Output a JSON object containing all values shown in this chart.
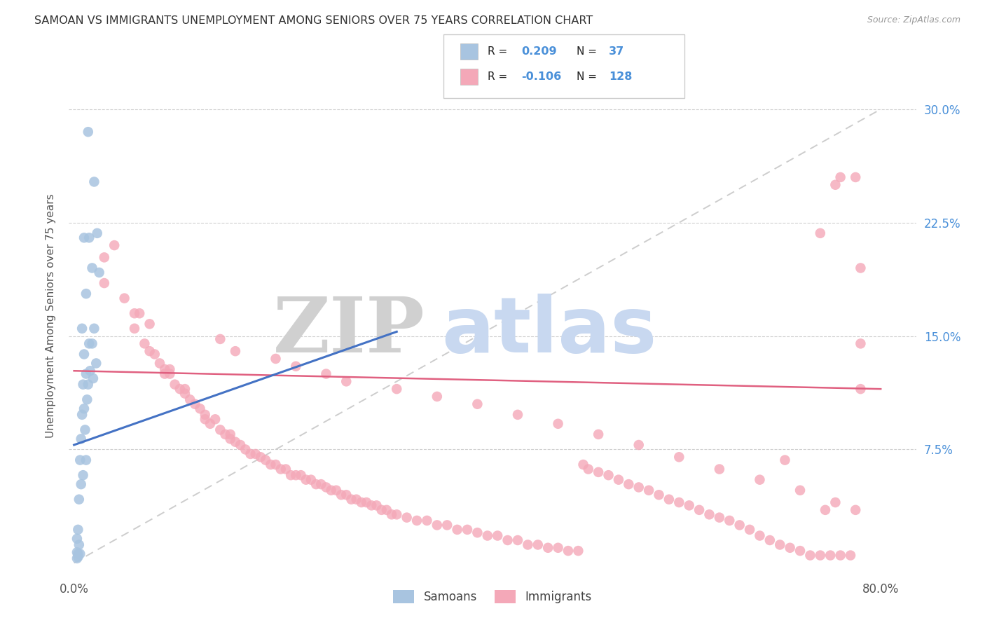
{
  "title": "SAMOAN VS IMMIGRANTS UNEMPLOYMENT AMONG SENIORS OVER 75 YEARS CORRELATION CHART",
  "source": "Source: ZipAtlas.com",
  "ylabel": "Unemployment Among Seniors over 75 years",
  "yticks_labels": [
    "30.0%",
    "22.5%",
    "15.0%",
    "7.5%"
  ],
  "ytick_vals": [
    0.3,
    0.225,
    0.15,
    0.075
  ],
  "xlim": [
    0.0,
    0.8
  ],
  "ylim": [
    0.0,
    0.32
  ],
  "samoan_color": "#a8c4e0",
  "samoan_line_color": "#4472c4",
  "immig_color": "#f4a8b8",
  "immig_line_color": "#e06080",
  "dashed_line_color": "#c8c8c8",
  "background": "#ffffff",
  "samoan_x": [
    0.014,
    0.02,
    0.023,
    0.01,
    0.015,
    0.025,
    0.018,
    0.012,
    0.02,
    0.008,
    0.015,
    0.018,
    0.01,
    0.022,
    0.016,
    0.012,
    0.019,
    0.014,
    0.009,
    0.013,
    0.01,
    0.008,
    0.011,
    0.007,
    0.012,
    0.006,
    0.009,
    0.007,
    0.005,
    0.004,
    0.003,
    0.005,
    0.003,
    0.004,
    0.006,
    0.004,
    0.003
  ],
  "samoan_y": [
    0.285,
    0.252,
    0.218,
    0.215,
    0.215,
    0.192,
    0.195,
    0.178,
    0.155,
    0.155,
    0.145,
    0.145,
    0.138,
    0.132,
    0.127,
    0.125,
    0.122,
    0.118,
    0.118,
    0.108,
    0.102,
    0.098,
    0.088,
    0.082,
    0.068,
    0.068,
    0.058,
    0.052,
    0.042,
    0.022,
    0.016,
    0.012,
    0.007,
    0.006,
    0.006,
    0.004,
    0.003
  ],
  "immig_x": [
    0.03,
    0.05,
    0.06,
    0.06,
    0.065,
    0.07,
    0.075,
    0.08,
    0.085,
    0.09,
    0.09,
    0.095,
    0.1,
    0.105,
    0.11,
    0.11,
    0.115,
    0.12,
    0.125,
    0.13,
    0.13,
    0.135,
    0.14,
    0.145,
    0.15,
    0.155,
    0.155,
    0.16,
    0.165,
    0.17,
    0.175,
    0.18,
    0.185,
    0.19,
    0.195,
    0.2,
    0.205,
    0.21,
    0.215,
    0.22,
    0.225,
    0.23,
    0.235,
    0.24,
    0.245,
    0.25,
    0.255,
    0.26,
    0.265,
    0.27,
    0.275,
    0.28,
    0.285,
    0.29,
    0.295,
    0.3,
    0.305,
    0.31,
    0.315,
    0.32,
    0.33,
    0.34,
    0.35,
    0.36,
    0.37,
    0.38,
    0.39,
    0.4,
    0.41,
    0.42,
    0.43,
    0.44,
    0.45,
    0.46,
    0.47,
    0.48,
    0.49,
    0.5,
    0.505,
    0.51,
    0.52,
    0.53,
    0.54,
    0.55,
    0.56,
    0.57,
    0.58,
    0.59,
    0.6,
    0.61,
    0.62,
    0.63,
    0.64,
    0.65,
    0.66,
    0.67,
    0.68,
    0.69,
    0.7,
    0.705,
    0.71,
    0.72,
    0.73,
    0.74,
    0.745,
    0.75,
    0.755,
    0.76,
    0.77,
    0.775,
    0.78,
    0.78,
    0.78,
    0.04,
    0.03,
    0.075,
    0.095,
    0.145,
    0.16,
    0.2,
    0.22,
    0.25,
    0.27,
    0.32,
    0.36,
    0.4,
    0.44,
    0.48,
    0.52,
    0.56,
    0.6,
    0.64,
    0.68,
    0.72,
    0.755,
    0.775,
    0.76,
    0.74
  ],
  "immig_y": [
    0.185,
    0.175,
    0.165,
    0.155,
    0.165,
    0.145,
    0.14,
    0.138,
    0.132,
    0.125,
    0.128,
    0.125,
    0.118,
    0.115,
    0.112,
    0.115,
    0.108,
    0.105,
    0.102,
    0.098,
    0.095,
    0.092,
    0.095,
    0.088,
    0.085,
    0.082,
    0.085,
    0.08,
    0.078,
    0.075,
    0.072,
    0.072,
    0.07,
    0.068,
    0.065,
    0.065,
    0.062,
    0.062,
    0.058,
    0.058,
    0.058,
    0.055,
    0.055,
    0.052,
    0.052,
    0.05,
    0.048,
    0.048,
    0.045,
    0.045,
    0.042,
    0.042,
    0.04,
    0.04,
    0.038,
    0.038,
    0.035,
    0.035,
    0.032,
    0.032,
    0.03,
    0.028,
    0.028,
    0.025,
    0.025,
    0.022,
    0.022,
    0.02,
    0.018,
    0.018,
    0.015,
    0.015,
    0.012,
    0.012,
    0.01,
    0.01,
    0.008,
    0.008,
    0.065,
    0.062,
    0.06,
    0.058,
    0.055,
    0.052,
    0.05,
    0.048,
    0.045,
    0.042,
    0.04,
    0.038,
    0.035,
    0.032,
    0.03,
    0.028,
    0.025,
    0.022,
    0.018,
    0.015,
    0.012,
    0.068,
    0.01,
    0.008,
    0.005,
    0.005,
    0.035,
    0.005,
    0.04,
    0.005,
    0.005,
    0.035,
    0.195,
    0.145,
    0.115,
    0.21,
    0.202,
    0.158,
    0.128,
    0.148,
    0.14,
    0.135,
    0.13,
    0.125,
    0.12,
    0.115,
    0.11,
    0.105,
    0.098,
    0.092,
    0.085,
    0.078,
    0.07,
    0.062,
    0.055,
    0.048,
    0.25,
    0.255,
    0.255,
    0.218
  ]
}
